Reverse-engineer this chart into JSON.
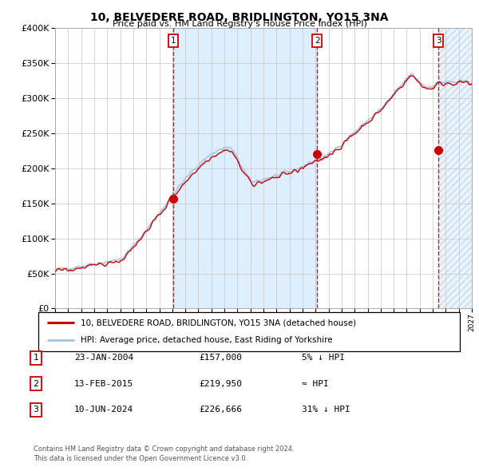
{
  "title": "10, BELVEDERE ROAD, BRIDLINGTON, YO15 3NA",
  "subtitle": "Price paid vs. HM Land Registry's House Price Index (HPI)",
  "legend_line1": "10, BELVEDERE ROAD, BRIDLINGTON, YO15 3NA (detached house)",
  "legend_line2": "HPI: Average price, detached house, East Riding of Yorkshire",
  "table": [
    {
      "num": "1",
      "date": "23-JAN-2004",
      "price": "£157,000",
      "info": "5% ↓ HPI"
    },
    {
      "num": "2",
      "date": "13-FEB-2015",
      "price": "£219,950",
      "info": "≈ HPI"
    },
    {
      "num": "3",
      "date": "10-JUN-2024",
      "price": "£226,666",
      "info": "31% ↓ HPI"
    }
  ],
  "footer": "Contains HM Land Registry data © Crown copyright and database right 2024.\nThis data is licensed under the Open Government Licence v3.0.",
  "year_start": 1995,
  "year_end": 2027,
  "ylim": [
    0,
    400000
  ],
  "yticks": [
    0,
    50000,
    100000,
    150000,
    200000,
    250000,
    300000,
    350000,
    400000
  ],
  "sale_years": [
    2004.06,
    2015.12,
    2024.44
  ],
  "sale_prices": [
    157000,
    219950,
    226666
  ],
  "hpi_color": "#aac8e8",
  "price_color": "#cc0000",
  "dashed_color": "#cc0000",
  "shade_color": "#ddeeff",
  "bg_color": "#ffffff",
  "grid_color": "#cccccc"
}
